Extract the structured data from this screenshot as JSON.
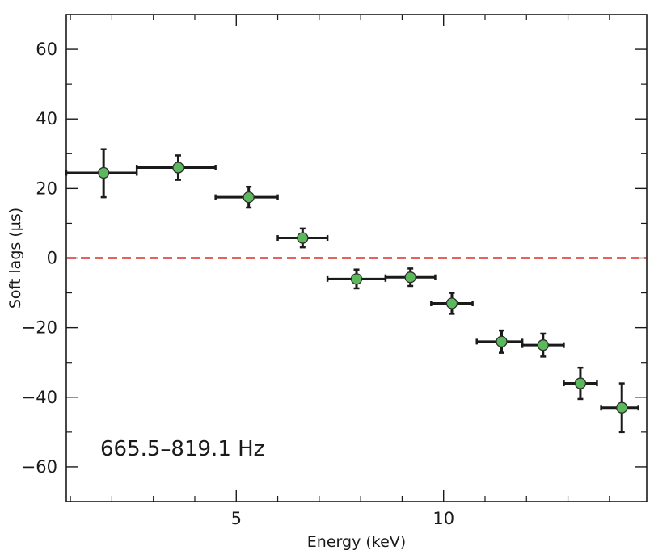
{
  "chart_data": {
    "type": "scatter",
    "title": "",
    "xlabel": "Energy (keV)",
    "ylabel": "Soft lags (µs)",
    "annotation": "665.5–819.1 Hz",
    "xlim": [
      0.9,
      14.9
    ],
    "ylim": [
      -70,
      70
    ],
    "xticks_major": [
      5,
      10
    ],
    "xticks_minor": [
      1,
      2,
      3,
      4,
      6,
      7,
      8,
      9,
      11,
      12,
      13,
      14
    ],
    "yticks_major": [
      -60,
      -40,
      -20,
      0,
      20,
      40,
      60
    ],
    "yticks_minor": [
      -70,
      -50,
      -30,
      -10,
      10,
      30,
      50,
      70
    ],
    "grid": false,
    "reference_line": {
      "y": 0,
      "style": "dashed",
      "color": "#d9302a"
    },
    "marker_color": "#5cb85c",
    "errorbar_color": "#1a1a1a",
    "points": [
      {
        "x": 1.8,
        "xerr_low": 0.9,
        "xerr_high": 0.8,
        "y": 24.5,
        "yerr_low": 7.0,
        "yerr_high": 6.8
      },
      {
        "x": 3.6,
        "xerr_low": 1.0,
        "xerr_high": 0.9,
        "y": 26.0,
        "yerr_low": 3.5,
        "yerr_high": 3.5
      },
      {
        "x": 5.3,
        "xerr_low": 0.8,
        "xerr_high": 0.7,
        "y": 17.5,
        "yerr_low": 3.0,
        "yerr_high": 3.0
      },
      {
        "x": 6.6,
        "xerr_low": 0.6,
        "xerr_high": 0.6,
        "y": 5.8,
        "yerr_low": 2.7,
        "yerr_high": 2.7
      },
      {
        "x": 7.9,
        "xerr_low": 0.7,
        "xerr_high": 0.7,
        "y": -6.0,
        "yerr_low": 2.7,
        "yerr_high": 2.7
      },
      {
        "x": 9.2,
        "xerr_low": 0.6,
        "xerr_high": 0.6,
        "y": -5.5,
        "yerr_low": 2.5,
        "yerr_high": 2.5
      },
      {
        "x": 10.2,
        "xerr_low": 0.5,
        "xerr_high": 0.5,
        "y": -13.0,
        "yerr_low": 3.0,
        "yerr_high": 3.0
      },
      {
        "x": 11.4,
        "xerr_low": 0.6,
        "xerr_high": 0.5,
        "y": -24.0,
        "yerr_low": 3.2,
        "yerr_high": 3.2
      },
      {
        "x": 12.4,
        "xerr_low": 0.5,
        "xerr_high": 0.5,
        "y": -25.0,
        "yerr_low": 3.3,
        "yerr_high": 3.3
      },
      {
        "x": 13.3,
        "xerr_low": 0.4,
        "xerr_high": 0.4,
        "y": -36.0,
        "yerr_low": 4.5,
        "yerr_high": 4.5
      },
      {
        "x": 14.3,
        "xerr_low": 0.5,
        "xerr_high": 0.4,
        "y": -43.0,
        "yerr_low": 7.0,
        "yerr_high": 7.0
      }
    ]
  }
}
